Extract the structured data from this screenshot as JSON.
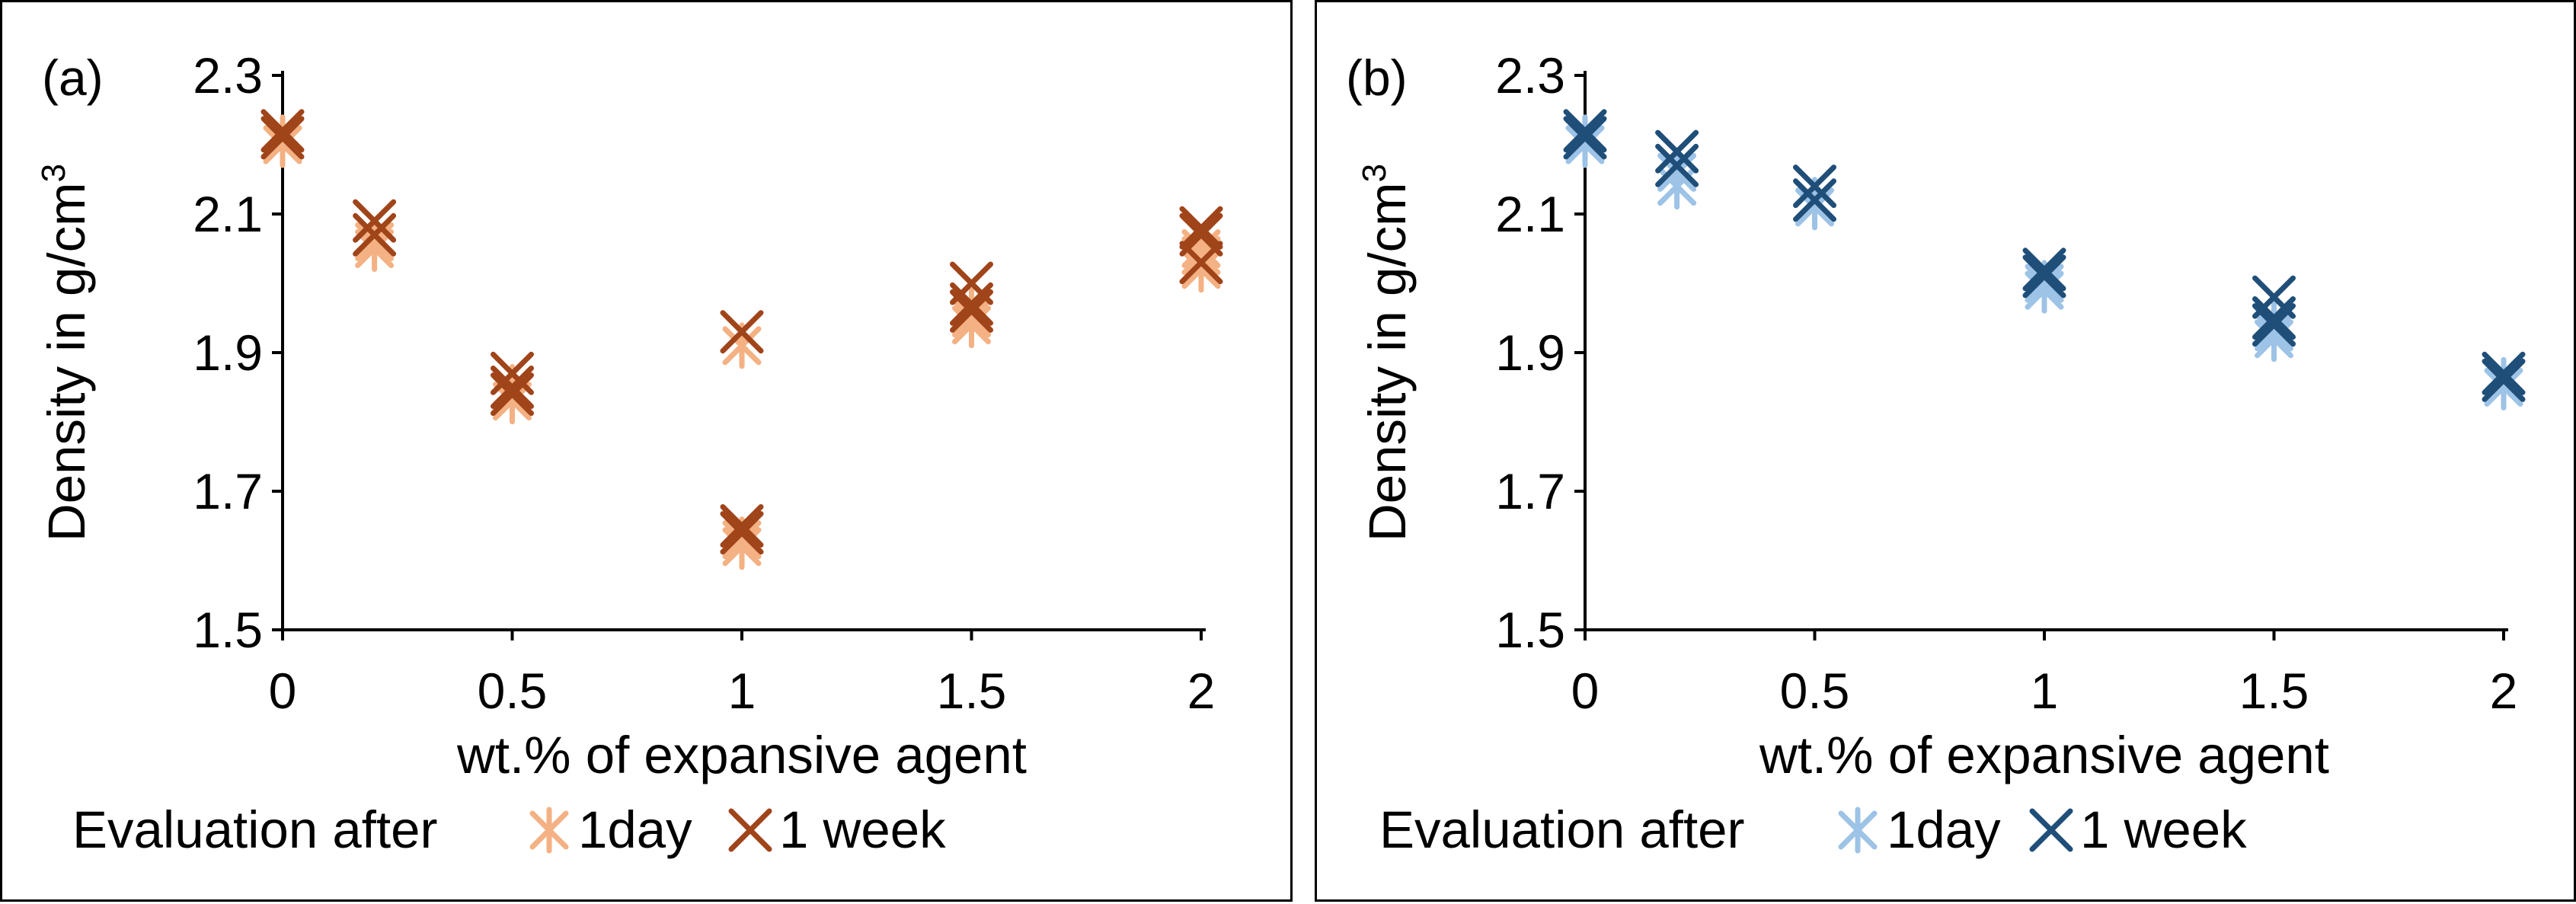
{
  "chart_data": [
    {
      "panel_label": "(a)",
      "type": "scatter",
      "xlabel": "wt.% of expansive agent",
      "ylabel": "Density in g/cm",
      "ylabel_sup": "3",
      "xlim": [
        0,
        2
      ],
      "ylim": [
        1.5,
        2.3
      ],
      "xticks": [
        "0",
        "0.5",
        "1",
        "1.5",
        "2"
      ],
      "yticks": [
        "1.5",
        "1.7",
        "1.9",
        "2.1",
        "2.3"
      ],
      "legend_title": "Evaluation after",
      "series": [
        {
          "name": "1day",
          "marker": "asterisk",
          "color": "#F4B183",
          "x": [
            0,
            0,
            0.2,
            0.2,
            0.5,
            0.5,
            0.5,
            1,
            1,
            1,
            1.5,
            1.5,
            1.5,
            2,
            2,
            2
          ],
          "y": [
            2.21,
            2.2,
            2.06,
            2.05,
            1.84,
            1.83,
            1.85,
            1.91,
            1.63,
            1.62,
            1.94,
            1.96,
            1.95,
            2.02,
            2.04,
            2.05
          ]
        },
        {
          "name": "1 week",
          "marker": "x",
          "color": "#A0441A",
          "x": [
            0,
            0,
            0.2,
            0.2,
            0.5,
            0.5,
            0.5,
            1,
            1,
            1,
            1.5,
            1.5,
            1.5,
            2,
            2,
            2
          ],
          "y": [
            2.22,
            2.21,
            2.09,
            2.07,
            1.87,
            1.84,
            1.85,
            1.93,
            1.65,
            1.64,
            2.0,
            1.97,
            1.96,
            2.03,
            2.07,
            2.08
          ]
        }
      ]
    },
    {
      "panel_label": "(b)",
      "type": "scatter",
      "xlabel": "wt.% of expansive agent",
      "ylabel": "Density in g/cm",
      "ylabel_sup": "3",
      "xlim": [
        0,
        2
      ],
      "ylim": [
        1.5,
        2.3
      ],
      "xticks": [
        "0",
        "0.5",
        "1",
        "1.5",
        "2"
      ],
      "yticks": [
        "1.5",
        "1.7",
        "1.9",
        "2.1",
        "2.3"
      ],
      "legend_title": "Evaluation after",
      "series": [
        {
          "name": "1day",
          "marker": "asterisk",
          "color": "#9DC3E6",
          "x": [
            0,
            0,
            0.2,
            0.2,
            0.5,
            0.5,
            1,
            1,
            1.5,
            1.5,
            1.5,
            2,
            2
          ],
          "y": [
            2.21,
            2.2,
            2.14,
            2.16,
            2.12,
            2.11,
            2.0,
            1.99,
            1.93,
            1.92,
            1.95,
            1.86,
            1.85
          ]
        },
        {
          "name": "1 week",
          "marker": "x",
          "color": "#1F4E79",
          "x": [
            0,
            0,
            0.2,
            0.2,
            0.5,
            0.5,
            1,
            1,
            1.5,
            1.5,
            1.5,
            2,
            2
          ],
          "y": [
            2.22,
            2.21,
            2.19,
            2.17,
            2.14,
            2.12,
            2.02,
            2.01,
            1.98,
            1.95,
            1.94,
            1.87,
            1.86
          ]
        }
      ]
    }
  ]
}
